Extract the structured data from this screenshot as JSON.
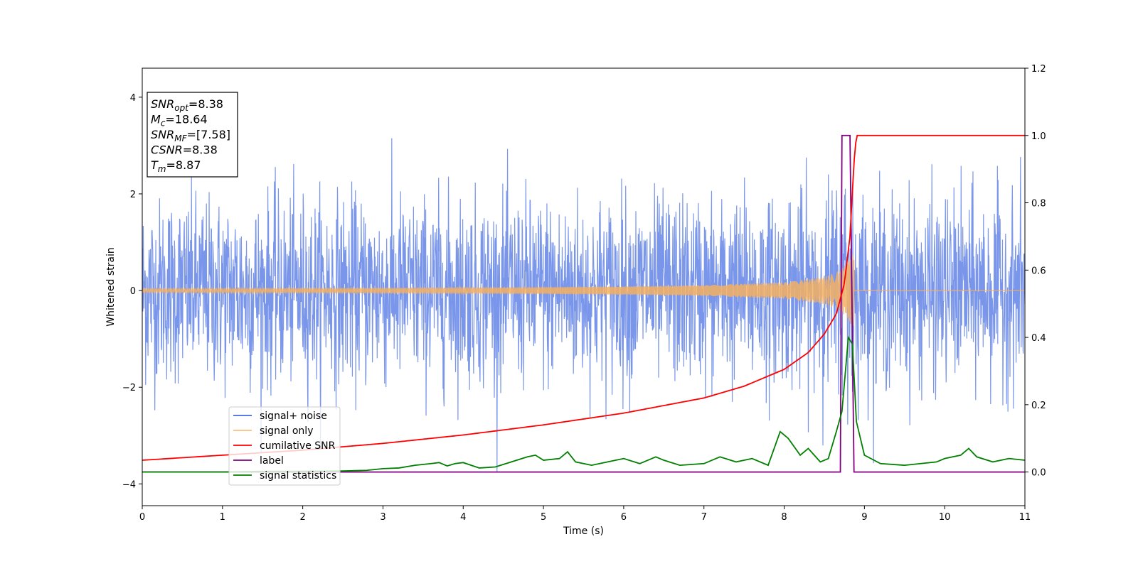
{
  "chart_data": {
    "type": "line",
    "xlabel": "Time (s)",
    "ylabel": "Whitened strain",
    "xlim": [
      0,
      11
    ],
    "ylim_left": [
      -4.45,
      4.6
    ],
    "ylim_right": [
      -0.1,
      1.2
    ],
    "x_ticks": [
      "0",
      "1",
      "2",
      "3",
      "4",
      "5",
      "6",
      "7",
      "8",
      "9",
      "10",
      "11"
    ],
    "y_ticks_left": [
      "−4",
      "−2",
      "0",
      "2",
      "4"
    ],
    "y_ticks_right": [
      "0.0",
      "0.2",
      "0.4",
      "0.6",
      "0.8",
      "1.0",
      "1.2"
    ],
    "merger_time": 8.87,
    "info_box": {
      "lines": [
        {
          "base": "SNR",
          "sub": "opt",
          "value": "=8.38"
        },
        {
          "base": "M",
          "sub": "c",
          "value": "=18.64"
        },
        {
          "base": "SNR",
          "sub": "MF",
          "value": "=[7.58]"
        },
        {
          "base": "CSNR",
          "sub": "",
          "value": "=8.38"
        },
        {
          "base": "T",
          "sub": "m",
          "value": "=8.87"
        }
      ]
    },
    "series": [
      {
        "name": "signal+ noise",
        "axis": "left",
        "color": "#4169e1",
        "description_values": {
          "noise_std": 1.0,
          "typical_peak": 3.6
        }
      },
      {
        "name": "signal only",
        "axis": "left",
        "color": "#f5b062",
        "x": [
          0,
          1,
          2,
          3,
          4,
          5,
          6,
          7,
          8,
          8.5,
          8.7,
          8.8,
          8.87,
          9,
          11
        ],
        "amplitude": [
          0.04,
          0.045,
          0.05,
          0.055,
          0.06,
          0.07,
          0.085,
          0.11,
          0.17,
          0.28,
          0.42,
          0.6,
          0.8,
          0,
          0
        ]
      },
      {
        "name": "cumilative SNR",
        "axis": "right",
        "color": "#ff0000",
        "x": [
          0,
          1,
          2,
          3,
          4,
          5,
          6,
          7,
          7.5,
          8,
          8.3,
          8.5,
          8.65,
          8.75,
          8.82,
          8.87,
          8.9,
          11
        ],
        "values": [
          0.035,
          0.05,
          0.065,
          0.085,
          0.11,
          0.14,
          0.175,
          0.22,
          0.255,
          0.305,
          0.355,
          0.41,
          0.47,
          0.56,
          0.7,
          0.92,
          1.0,
          1.0
        ]
      },
      {
        "name": "label",
        "axis": "right",
        "color": "#800080",
        "x": [
          0,
          8.7,
          8.72,
          8.77,
          8.82,
          8.87,
          8.89,
          11
        ],
        "values": [
          0,
          0,
          1.0,
          1.0,
          1.0,
          0,
          0,
          0
        ]
      },
      {
        "name": "signal statistics",
        "axis": "right",
        "color": "#008000",
        "x": [
          0,
          0.5,
          1,
          1.5,
          2,
          2.5,
          2.8,
          3,
          3.2,
          3.4,
          3.6,
          3.7,
          3.8,
          3.9,
          4,
          4.2,
          4.4,
          4.6,
          4.8,
          4.9,
          5,
          5.2,
          5.3,
          5.4,
          5.6,
          5.8,
          6,
          6.2,
          6.4,
          6.5,
          6.7,
          7,
          7.2,
          7.4,
          7.6,
          7.8,
          7.95,
          8.05,
          8.2,
          8.3,
          8.45,
          8.55,
          8.65,
          8.72,
          8.8,
          8.85,
          8.9,
          9.0,
          9.2,
          9.5,
          9.7,
          9.9,
          10.0,
          10.2,
          10.3,
          10.4,
          10.6,
          10.8,
          11
        ],
        "values": [
          0,
          0.0,
          0.0,
          0.002,
          0.002,
          0.003,
          0.005,
          0.01,
          0.012,
          0.02,
          0.025,
          0.028,
          0.018,
          0.025,
          0.028,
          0.012,
          0.015,
          0.03,
          0.045,
          0.05,
          0.035,
          0.04,
          0.06,
          0.03,
          0.02,
          0.03,
          0.04,
          0.025,
          0.045,
          0.035,
          0.02,
          0.025,
          0.045,
          0.03,
          0.04,
          0.02,
          0.12,
          0.1,
          0.05,
          0.07,
          0.03,
          0.04,
          0.12,
          0.18,
          0.4,
          0.38,
          0.15,
          0.05,
          0.025,
          0.02,
          0.025,
          0.03,
          0.04,
          0.05,
          0.07,
          0.045,
          0.03,
          0.04,
          0.035
        ]
      }
    ],
    "legend": {
      "placement": "lower-left",
      "entries": [
        "signal+ noise",
        "signal only",
        "cumilative SNR",
        "label",
        "signal statistics"
      ]
    }
  }
}
